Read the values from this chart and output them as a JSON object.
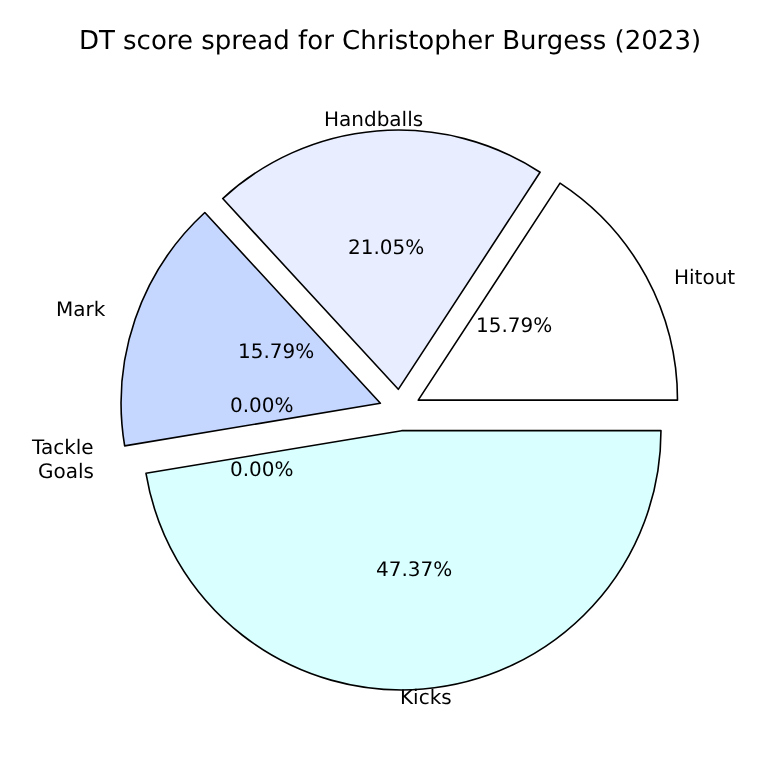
{
  "chart_data": {
    "type": "pie",
    "title": "DT score spread for Christopher Burgess (2023)",
    "categories": [
      "Hitout",
      "Handballs",
      "Mark",
      "Tackle",
      "Goals",
      "Kicks"
    ],
    "values": [
      15.79,
      21.05,
      15.79,
      0,
      0,
      47.37
    ],
    "value_labels": [
      "15.79%",
      "21.05%",
      "15.79%",
      "0.00%",
      "0.00%",
      "47.37%"
    ],
    "colors": [
      "#ffffff",
      "#e8eeff",
      "#c5d6ff",
      "#b0c4ff",
      "#a0b8ff",
      "#d9ffff"
    ],
    "legend": false
  }
}
